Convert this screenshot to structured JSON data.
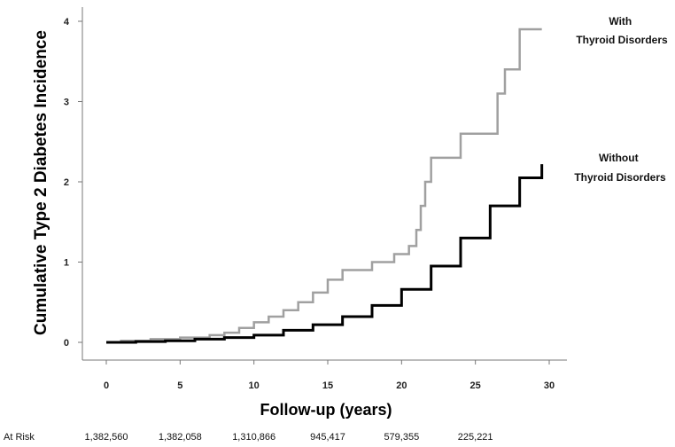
{
  "chart_data": {
    "type": "line",
    "step": true,
    "xlabel": "Follow-up (years)",
    "ylabel": "Cumulative Type 2 Diabetes Incidence",
    "xlim": [
      0,
      30
    ],
    "ylim": [
      0,
      4
    ],
    "xticks": [
      0,
      5,
      10,
      15,
      20,
      25,
      30
    ],
    "yticks": [
      0,
      1,
      2,
      3,
      4
    ],
    "grid": false,
    "series": [
      {
        "name": "With Thyroid Disorders",
        "label_lines": [
          "With",
          "Thyroid Disorders"
        ],
        "color": "#a0a0a0",
        "x": [
          0,
          1,
          3,
          5,
          7,
          8,
          9,
          10,
          11,
          12,
          13,
          14,
          15,
          16,
          18,
          19.5,
          20.5,
          21,
          21.3,
          21.6,
          22,
          24,
          26.5,
          27,
          28,
          29.5
        ],
        "y": [
          0,
          0.02,
          0.04,
          0.06,
          0.09,
          0.12,
          0.18,
          0.25,
          0.32,
          0.4,
          0.5,
          0.62,
          0.78,
          0.9,
          1.0,
          1.1,
          1.2,
          1.4,
          1.7,
          2.0,
          2.3,
          2.6,
          3.1,
          3.4,
          3.9,
          3.9
        ]
      },
      {
        "name": "Without Thyroid Disorders",
        "label_lines": [
          "Without",
          "Thyroid Disorders"
        ],
        "color": "#000000",
        "x": [
          0,
          2,
          4,
          6,
          8,
          10,
          12,
          14,
          16,
          18,
          20,
          22,
          24,
          26,
          28,
          29.5
        ],
        "y": [
          0,
          0.01,
          0.02,
          0.04,
          0.06,
          0.09,
          0.15,
          0.22,
          0.32,
          0.46,
          0.66,
          0.95,
          1.3,
          1.7,
          2.05,
          2.22
        ]
      }
    ],
    "at_risk": {
      "label": "At Risk",
      "values": [
        "1,382,560",
        "1,382,058",
        "1,310,866",
        "945,417",
        "579,355",
        "225,221"
      ]
    }
  }
}
